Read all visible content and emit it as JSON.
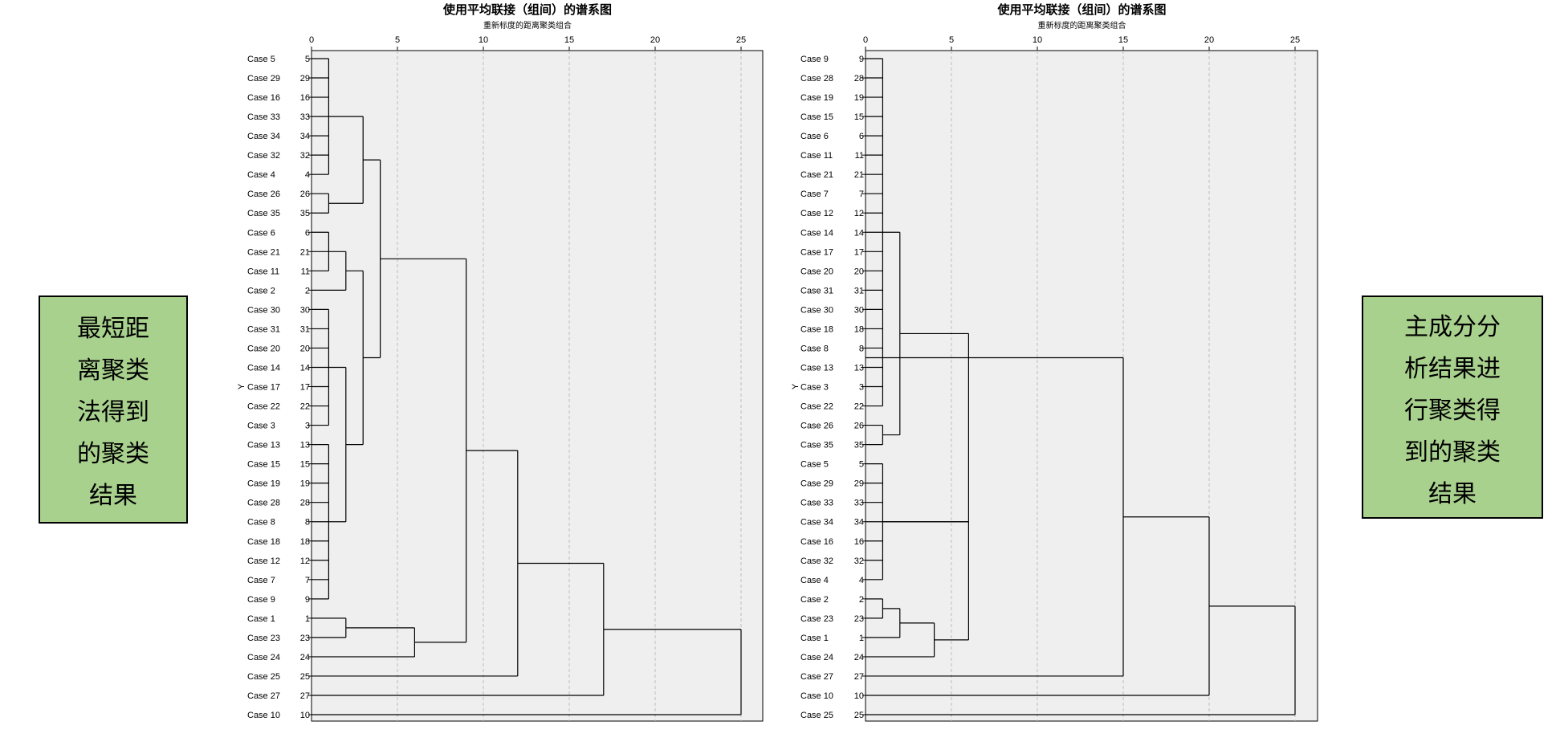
{
  "left_box": {
    "lines": [
      "最短距",
      "离聚类",
      "法得到",
      "的聚类",
      "结果"
    ],
    "color": "#a9d18e"
  },
  "right_box": {
    "lines": [
      "主成分分",
      "析结果进",
      "行聚类得",
      "到的聚类",
      "结果"
    ],
    "color": "#a9d18e"
  },
  "chart_data": [
    {
      "type": "dendrogram",
      "title": "使用平均联接（组间）的谱系图",
      "subtitle": "重新标度的距离聚类组合",
      "axis_ticks": [
        0,
        5,
        10,
        15,
        20,
        25
      ],
      "xlim": [
        0,
        25
      ],
      "y_marker": "Y",
      "y_marker_row": 17,
      "leaves": [
        5,
        29,
        16,
        33,
        34,
        32,
        4,
        26,
        35,
        6,
        21,
        11,
        2,
        30,
        31,
        20,
        14,
        17,
        22,
        3,
        13,
        15,
        19,
        28,
        8,
        18,
        12,
        7,
        9,
        1,
        23,
        24,
        25,
        27,
        10
      ],
      "case_labels": [
        "Case 5",
        "Case 29",
        "Case 16",
        "Case 33",
        "Case 34",
        "Case 32",
        "Case 4",
        "Case 26",
        "Case 35",
        "Case 6",
        "Case 21",
        "Case 11",
        "Case 2",
        "Case 30",
        "Case 31",
        "Case 20",
        "Case 14",
        "Case 17",
        "Case 22",
        "Case 3",
        "Case 13",
        "Case 15",
        "Case 19",
        "Case 28",
        "Case 8",
        "Case 18",
        "Case 12",
        "Case 7",
        "Case 9",
        "Case 1",
        "Case 23",
        "Case 24",
        "Case 25",
        "Case 27",
        "Case 10"
      ],
      "merges": [
        {
          "rows": [
            0,
            1,
            2,
            3,
            4,
            5,
            6
          ],
          "height": 1
        },
        {
          "rows": [
            7,
            8
          ],
          "height": 1
        },
        {
          "groups": [
            [
              0,
              6
            ],
            [
              7,
              8
            ]
          ],
          "height": 3
        },
        {
          "rows": [
            9,
            10,
            11
          ],
          "height": 1
        },
        {
          "groups": [
            [
              9,
              11
            ],
            [
              12,
              12
            ]
          ],
          "height": 2
        },
        {
          "rows": [
            13,
            14,
            15,
            16,
            17,
            18,
            19
          ],
          "height": 1
        },
        {
          "rows": [
            20,
            21,
            22,
            23,
            24,
            25,
            26,
            27,
            28
          ],
          "height": 1
        },
        {
          "groups": [
            [
              13,
              19
            ],
            [
              20,
              28
            ]
          ],
          "height": 2
        },
        {
          "groups": [
            [
              9,
              12
            ],
            [
              13,
              28
            ]
          ],
          "height": 3
        },
        {
          "groups": [
            [
              0,
              8
            ],
            [
              9,
              28
            ]
          ],
          "height": 4
        },
        {
          "groups": [
            [
              29,
              29
            ],
            [
              30,
              30
            ]
          ],
          "height": 2
        },
        {
          "groups": [
            [
              29,
              30
            ],
            [
              31,
              31
            ]
          ],
          "height": 6
        },
        {
          "groups": [
            [
              0,
              28
            ],
            [
              29,
              31
            ]
          ],
          "height": 9
        },
        {
          "groups": [
            [
              0,
              31
            ],
            [
              32,
              32
            ]
          ],
          "height": 12
        },
        {
          "groups": [
            [
              0,
              32
            ],
            [
              33,
              33
            ]
          ],
          "height": 17
        },
        {
          "groups": [
            [
              0,
              33
            ],
            [
              34,
              34
            ]
          ],
          "height": 25
        }
      ]
    },
    {
      "type": "dendrogram",
      "title": "使用平均联接（组间）的谱系图",
      "subtitle": "重新标度的距离聚类组合",
      "axis_ticks": [
        0,
        5,
        10,
        15,
        20,
        25
      ],
      "xlim": [
        0,
        25
      ],
      "y_marker": "Y",
      "y_marker_row": 17,
      "leaves": [
        9,
        28,
        19,
        15,
        6,
        11,
        21,
        7,
        12,
        14,
        17,
        20,
        31,
        30,
        18,
        8,
        13,
        3,
        22,
        26,
        35,
        5,
        29,
        33,
        34,
        16,
        32,
        4,
        2,
        23,
        1,
        24,
        27,
        10,
        25
      ],
      "case_labels": [
        "Case 9",
        "Case 28",
        "Case 19",
        "Case 15",
        "Case 6",
        "Case 11",
        "Case 21",
        "Case 7",
        "Case 12",
        "Case 14",
        "Case 17",
        "Case 20",
        "Case 31",
        "Case 30",
        "Case 18",
        "Case 8",
        "Case 13",
        "Case 3",
        "Case 22",
        "Case 26",
        "Case 35",
        "Case 5",
        "Case 29",
        "Case 33",
        "Case 34",
        "Case 16",
        "Case 32",
        "Case 4",
        "Case 2",
        "Case 23",
        "Case 1",
        "Case 24",
        "Case 27",
        "Case 10",
        "Case 25"
      ],
      "merges": [
        {
          "rows": [
            0,
            1,
            2,
            3,
            4,
            5,
            6,
            7,
            8,
            9,
            10,
            11,
            12,
            13,
            14,
            15,
            16,
            17,
            18
          ],
          "height": 1
        },
        {
          "rows": [
            19,
            20
          ],
          "height": 1
        },
        {
          "groups": [
            [
              0,
              18
            ],
            [
              19,
              20
            ]
          ],
          "height": 2
        },
        {
          "rows": [
            21,
            22,
            23,
            24,
            25,
            26,
            27
          ],
          "height": 1
        },
        {
          "groups": [
            [
              0,
              20
            ],
            [
              21,
              27
            ]
          ],
          "height": 6
        },
        {
          "groups": [
            [
              28,
              28
            ],
            [
              29,
              29
            ]
          ],
          "height": 1
        },
        {
          "groups": [
            [
              28,
              29
            ],
            [
              30,
              30
            ]
          ],
          "height": 2
        },
        {
          "groups": [
            [
              28,
              30
            ],
            [
              31,
              31
            ]
          ],
          "height": 4
        },
        {
          "groups": [
            [
              21,
              27
            ],
            [
              28,
              31
            ]
          ],
          "height": 6
        },
        {
          "groups": [
            [
              0,
              31
            ],
            [
              32,
              32
            ]
          ],
          "height": 15
        },
        {
          "groups": [
            [
              0,
              32
            ],
            [
              33,
              33
            ]
          ],
          "height": 20
        },
        {
          "groups": [
            [
              0,
              33
            ],
            [
              34,
              34
            ]
          ],
          "height": 25
        }
      ]
    }
  ]
}
